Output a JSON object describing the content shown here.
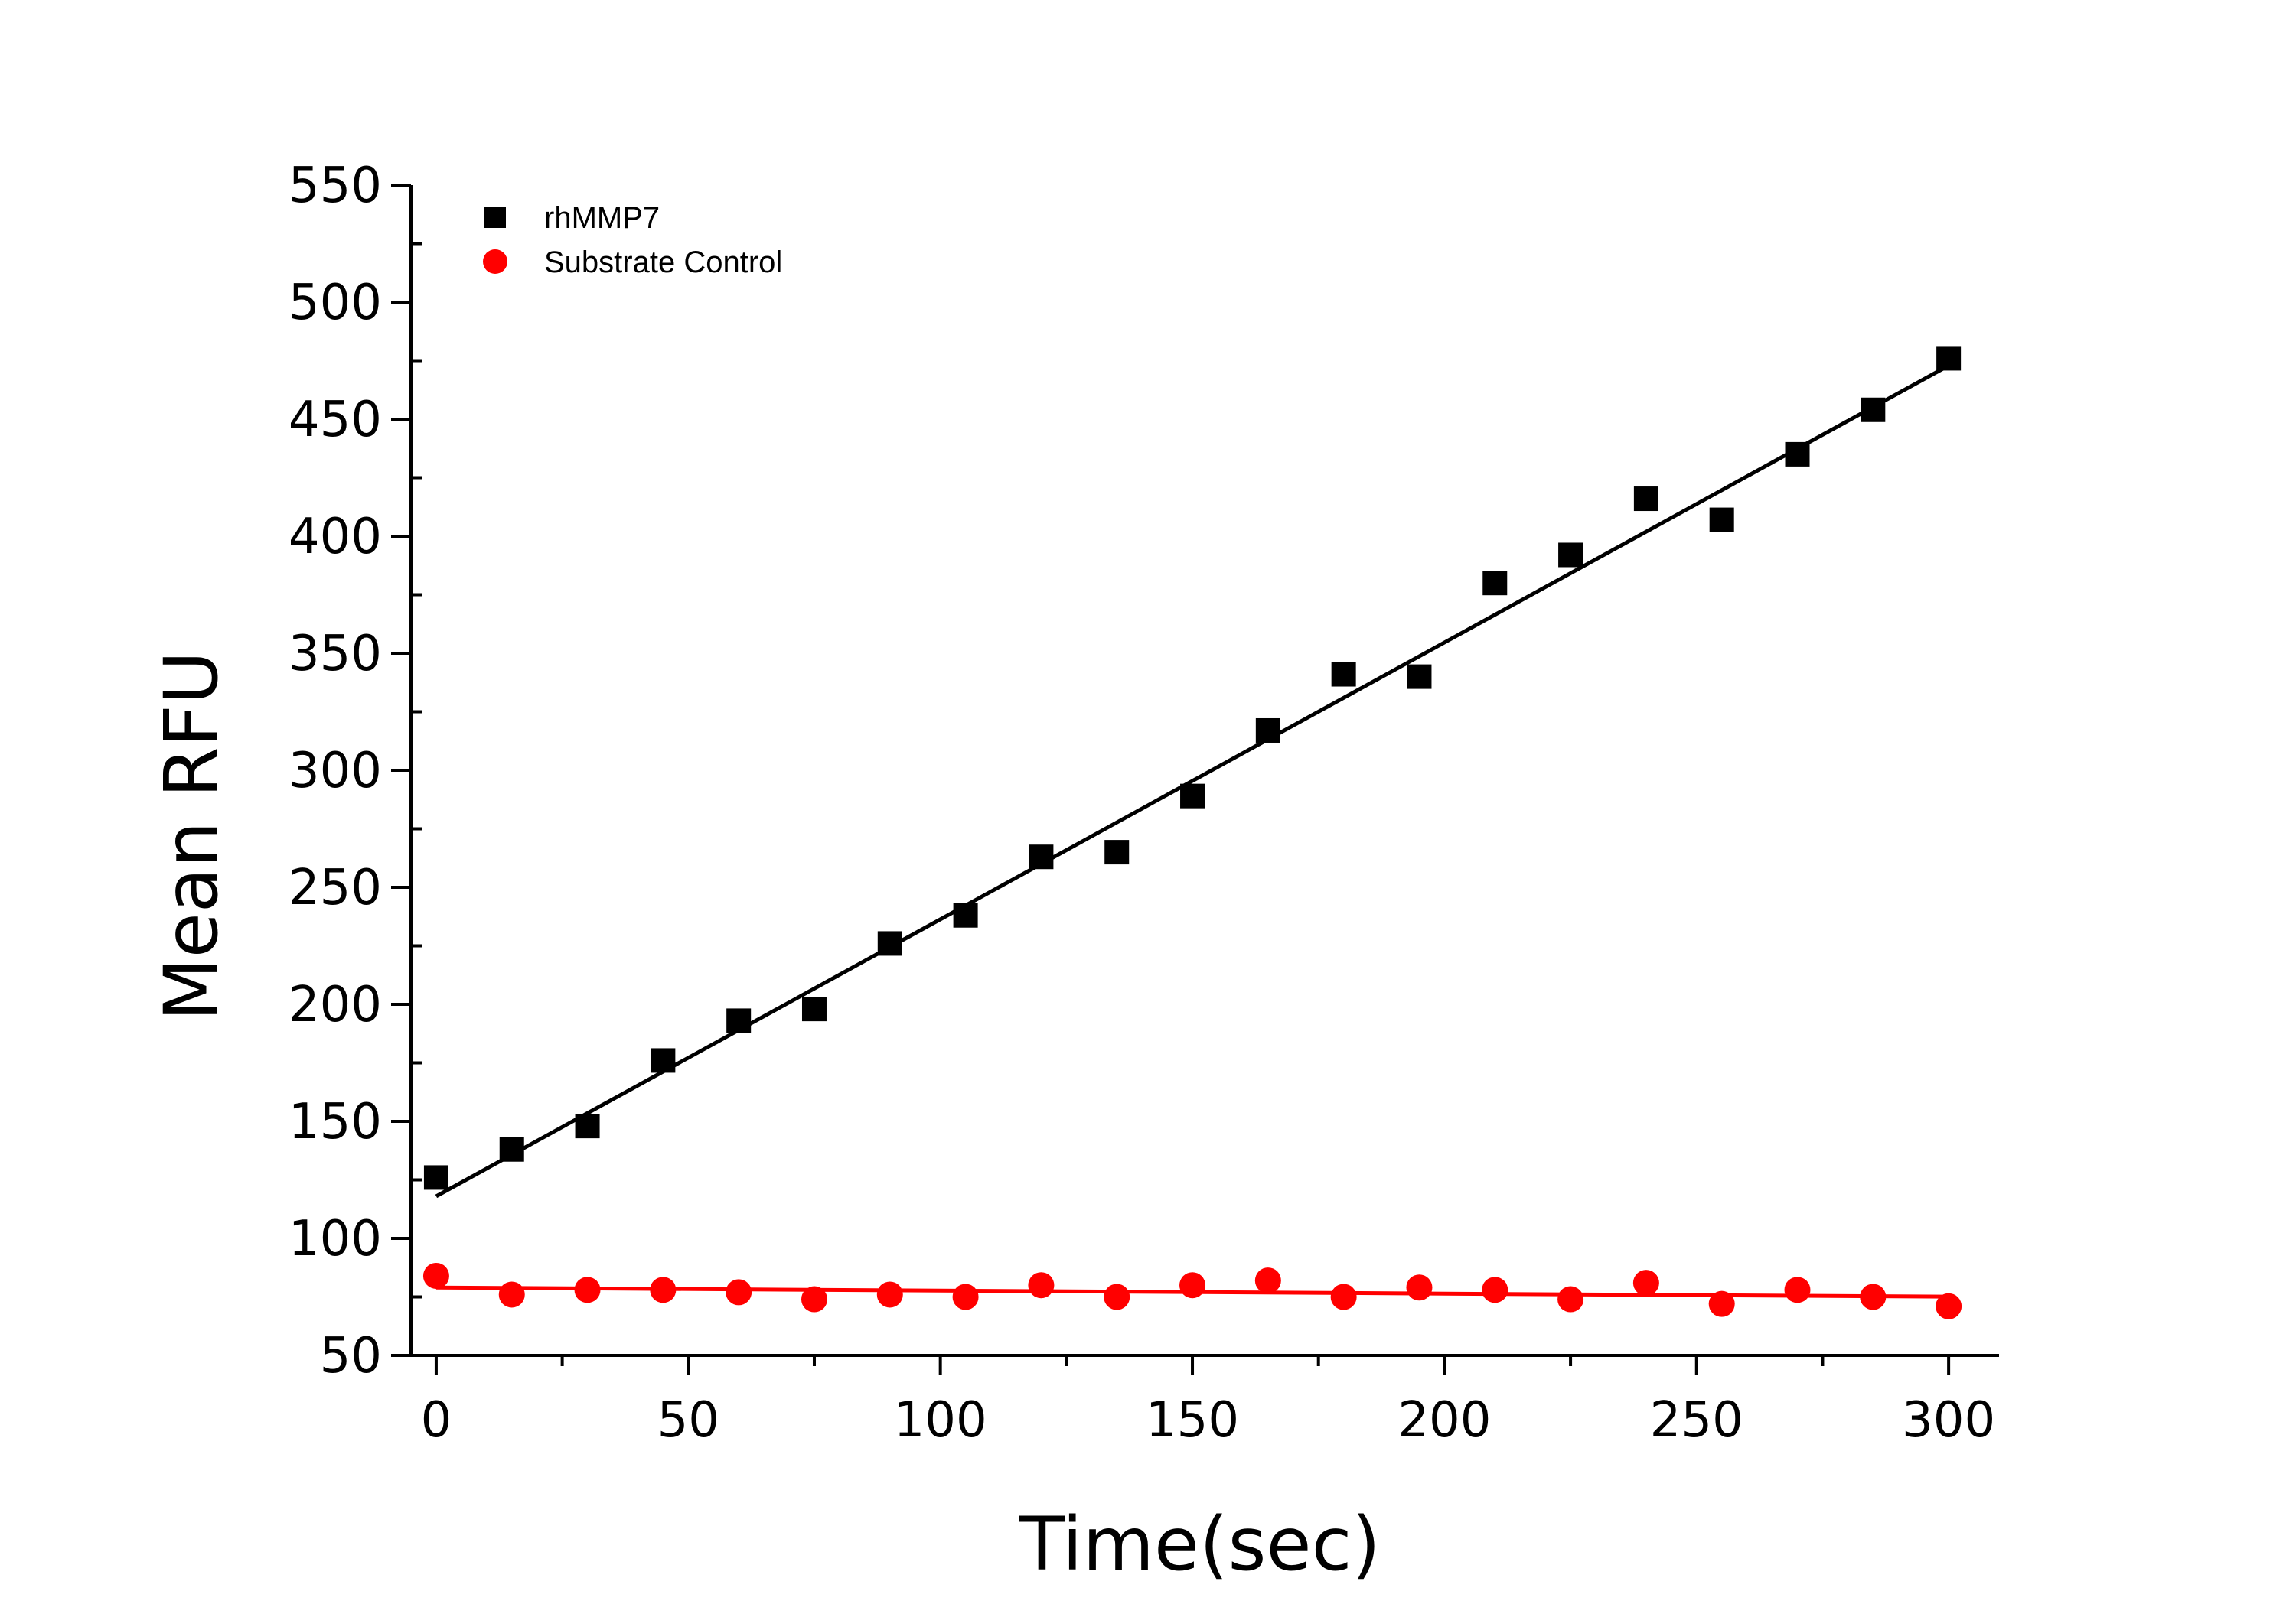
{
  "chart_data": {
    "type": "scatter",
    "title": "",
    "xlabel": "Time(sec)",
    "ylabel": "Mean RFU",
    "xlim": [
      -5,
      310
    ],
    "ylim": [
      50,
      550
    ],
    "xticks": [
      0,
      50,
      100,
      150,
      200,
      250,
      300
    ],
    "yticks": [
      50,
      100,
      150,
      200,
      250,
      300,
      350,
      400,
      450,
      500,
      550
    ],
    "x_minor_step": 25,
    "y_minor_step": 25,
    "legend_position": "top-left",
    "series": [
      {
        "name": "rhMMP7",
        "marker": "square",
        "color": "#000000",
        "x": [
          0,
          15,
          30,
          45,
          60,
          75,
          90,
          105,
          120,
          135,
          150,
          165,
          180,
          195,
          210,
          225,
          240,
          255,
          270,
          285,
          300
        ],
        "y": [
          126,
          138,
          148,
          176,
          193,
          198,
          226,
          238,
          263,
          265,
          289,
          317,
          341,
          340,
          380,
          392,
          416,
          407,
          435,
          454,
          476
        ],
        "fit": {
          "intercept": 118,
          "slope": 1.183
        }
      },
      {
        "name": "Substrate Control",
        "marker": "circle",
        "color": "#ff0000",
        "x": [
          0,
          15,
          30,
          45,
          60,
          75,
          90,
          105,
          120,
          135,
          150,
          165,
          180,
          195,
          210,
          225,
          240,
          255,
          270,
          285,
          300
        ],
        "y": [
          84,
          76,
          78,
          78,
          77,
          74,
          76,
          75,
          80,
          75,
          80,
          82,
          75,
          79,
          78,
          74,
          81,
          72,
          78,
          75,
          71
        ],
        "fit": {
          "intercept": 79,
          "slope": -0.013
        }
      }
    ]
  }
}
